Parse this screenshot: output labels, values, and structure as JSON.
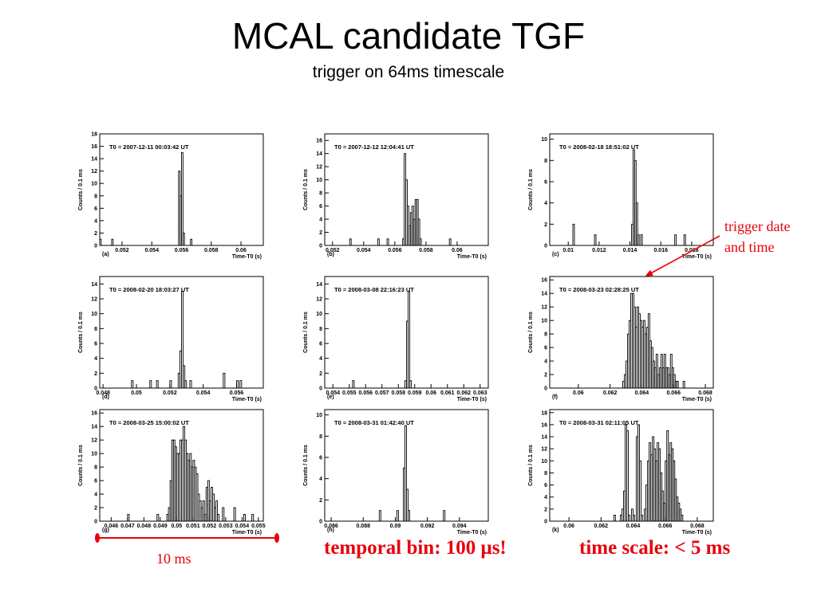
{
  "title": "MCAL candidate TGF",
  "subtitle": "trigger on 64ms timescale",
  "annotations": {
    "trigger_date_line1": "trigger date",
    "trigger_date_line2": "and time",
    "ten_ms": "10 ms",
    "temporal_bin": "temporal bin: 100 μs!",
    "time_scale": "time scale: < 5 ms"
  },
  "colors": {
    "annotation": "#e8000b",
    "histogram": "#000000"
  },
  "chart_data": [
    {
      "type": "bar",
      "panel": "(a)",
      "label": "T0 = 2007-12-11 00:03:42 UT",
      "xlabel": "Time-T0 (s)",
      "ylabel": "Counts /     0.1 ms",
      "xlim": [
        0.0505,
        0.0615
      ],
      "ylim": [
        0,
        18
      ],
      "xticks": [
        "0.052",
        "0.054",
        "0.056",
        "0.058",
        "0.06"
      ],
      "xtick_values": [
        0.052,
        0.054,
        0.056,
        0.058,
        0.06
      ],
      "yticks": [
        0,
        2,
        4,
        6,
        8,
        10,
        12,
        14,
        16,
        18
      ],
      "bin_width": 0.0001,
      "bins": [
        [
          0.0505,
          1
        ],
        [
          0.0513,
          1
        ],
        [
          0.0558,
          12
        ],
        [
          0.0559,
          8
        ],
        [
          0.056,
          15
        ],
        [
          0.0561,
          2
        ],
        [
          0.0566,
          1
        ]
      ]
    },
    {
      "type": "bar",
      "panel": "(b)",
      "label": "T0 = 2007-12-12 12:04:41 UT",
      "xlabel": "Time-T0 (s)",
      "ylabel": "Counts /     0.1 ms",
      "xlim": [
        0.0515,
        0.062
      ],
      "ylim": [
        0,
        17
      ],
      "xticks": [
        "0.052",
        "0.054",
        "0.056",
        "0.058",
        "0.06"
      ],
      "xtick_values": [
        0.052,
        0.054,
        0.056,
        0.058,
        0.06
      ],
      "yticks": [
        0,
        2,
        4,
        6,
        8,
        10,
        12,
        14,
        16
      ],
      "bin_width": 0.0001,
      "bins": [
        [
          0.0531,
          1
        ],
        [
          0.0549,
          1
        ],
        [
          0.0555,
          1
        ],
        [
          0.0565,
          1
        ],
        [
          0.0566,
          14
        ],
        [
          0.0567,
          10
        ],
        [
          0.0568,
          6
        ],
        [
          0.0569,
          3
        ],
        [
          0.057,
          5
        ],
        [
          0.0571,
          6
        ],
        [
          0.0572,
          4
        ],
        [
          0.0573,
          7
        ],
        [
          0.0574,
          7
        ],
        [
          0.0575,
          4
        ],
        [
          0.0576,
          1
        ],
        [
          0.0595,
          1
        ]
      ]
    },
    {
      "type": "bar",
      "panel": "(c)",
      "label": "T0 = 2008-02-18 18:51:02 UT",
      "xlabel": "Time-T0 (s)",
      "ylabel": "Counts /     0.1 ms",
      "xlim": [
        0.0088,
        0.0194
      ],
      "ylim": [
        0,
        10.5
      ],
      "xticks": [
        "0.01",
        "0.012",
        "0.014",
        "0.016",
        "0.018"
      ],
      "xtick_values": [
        0.01,
        0.012,
        0.014,
        0.016,
        0.018
      ],
      "yticks": [
        0,
        2,
        4,
        6,
        8,
        10
      ],
      "bin_width": 0.0001,
      "bins": [
        [
          0.0103,
          2
        ],
        [
          0.0117,
          1
        ],
        [
          0.0141,
          2
        ],
        [
          0.0142,
          9
        ],
        [
          0.0143,
          8
        ],
        [
          0.0144,
          4
        ],
        [
          0.0145,
          1
        ],
        [
          0.0147,
          1
        ],
        [
          0.0169,
          1
        ],
        [
          0.0175,
          1
        ]
      ]
    },
    {
      "type": "bar",
      "panel": "(d)",
      "label": "T0 = 2008-02-20 18:03:27 UT",
      "xlabel": "Time-T0 (s)",
      "ylabel": "Counts /     0.1 ms",
      "xlim": [
        0.0478,
        0.0576
      ],
      "ylim": [
        0,
        15
      ],
      "xticks": [
        "0.048",
        "0.05",
        "0.052",
        "0.054",
        "0.056"
      ],
      "xtick_values": [
        0.048,
        0.05,
        0.052,
        0.054,
        0.056
      ],
      "yticks": [
        0,
        2,
        4,
        6,
        8,
        10,
        12,
        14
      ],
      "bin_width": 0.0001,
      "bins": [
        [
          0.0497,
          1
        ],
        [
          0.0508,
          1
        ],
        [
          0.0512,
          1
        ],
        [
          0.052,
          1
        ],
        [
          0.0525,
          2
        ],
        [
          0.0526,
          5
        ],
        [
          0.0527,
          13
        ],
        [
          0.0528,
          3
        ],
        [
          0.0529,
          1
        ],
        [
          0.0532,
          1
        ],
        [
          0.0552,
          2
        ],
        [
          0.056,
          1
        ],
        [
          0.0562,
          1
        ]
      ]
    },
    {
      "type": "bar",
      "panel": "(e)",
      "label": "T0 = 2008-03-08 22:16:23 UT",
      "xlabel": "Time-T0 (s)",
      "ylabel": "Counts /     0.1 ms",
      "xlim": [
        0.0535,
        0.0635
      ],
      "ylim": [
        0,
        15
      ],
      "xticks": [
        "0.054",
        "0.055",
        "0.056",
        "0.057",
        "0.058",
        "0.059",
        "0.06",
        "0.061",
        "0.062",
        "0.063"
      ],
      "xtick_values": [
        0.054,
        0.055,
        0.056,
        0.057,
        0.058,
        0.059,
        0.06,
        0.061,
        0.062,
        0.063
      ],
      "yticks": [
        0,
        2,
        4,
        6,
        8,
        10,
        12,
        14
      ],
      "bin_width": 0.0001,
      "bins": [
        [
          0.0552,
          1
        ],
        [
          0.0584,
          1
        ],
        [
          0.0585,
          9
        ],
        [
          0.0586,
          13
        ],
        [
          0.0587,
          1
        ]
      ]
    },
    {
      "type": "bar",
      "panel": "(f)",
      "label": "T0 = 2008-03-23 02:28:25 UT",
      "xlabel": "Time-T0 (s)",
      "ylabel": "Counts /     0.1 ms",
      "xlim": [
        0.0582,
        0.0685
      ],
      "ylim": [
        0,
        16.5
      ],
      "xticks": [
        "0.06",
        "0.062",
        "0.064",
        "0.066",
        "0.068"
      ],
      "xtick_values": [
        0.06,
        0.062,
        0.064,
        0.066,
        0.068
      ],
      "yticks": [
        0,
        2,
        4,
        6,
        8,
        10,
        12,
        14,
        16
      ],
      "bin_width": 0.0001,
      "bins": [
        [
          0.0628,
          1
        ],
        [
          0.0629,
          2
        ],
        [
          0.063,
          4
        ],
        [
          0.0631,
          8
        ],
        [
          0.0632,
          10
        ],
        [
          0.0633,
          14
        ],
        [
          0.0634,
          14
        ],
        [
          0.0635,
          12
        ],
        [
          0.0636,
          9
        ],
        [
          0.0637,
          12
        ],
        [
          0.0638,
          11
        ],
        [
          0.0639,
          10
        ],
        [
          0.064,
          9
        ],
        [
          0.0641,
          10
        ],
        [
          0.0642,
          8
        ],
        [
          0.0643,
          9
        ],
        [
          0.0644,
          11
        ],
        [
          0.0645,
          7
        ],
        [
          0.0646,
          6
        ],
        [
          0.0647,
          4
        ],
        [
          0.0648,
          3
        ],
        [
          0.0649,
          5
        ],
        [
          0.065,
          2
        ],
        [
          0.0651,
          3
        ],
        [
          0.0652,
          5
        ],
        [
          0.0653,
          3
        ],
        [
          0.0654,
          5
        ],
        [
          0.0655,
          3
        ],
        [
          0.0656,
          3
        ],
        [
          0.0657,
          2
        ],
        [
          0.0658,
          5
        ],
        [
          0.0659,
          3
        ],
        [
          0.066,
          2
        ],
        [
          0.0661,
          1
        ],
        [
          0.0662,
          1
        ],
        [
          0.0666,
          1
        ]
      ]
    },
    {
      "type": "bar",
      "panel": "(g)",
      "label": "T0 = 2008-03-25 15:00:02 UT",
      "xlabel": "Time-T0 (s)",
      "ylabel": "Counts /     0.1 ms",
      "xlim": [
        0.0453,
        0.0553
      ],
      "ylim": [
        0,
        16.5
      ],
      "xticks": [
        "0.046",
        "0.047",
        "0.048",
        "0.049",
        "0.05",
        "0.051",
        "0.052",
        "0.053",
        "0.054",
        "0.055"
      ],
      "xtick_values": [
        0.046,
        0.047,
        0.048,
        0.049,
        0.05,
        0.051,
        0.052,
        0.053,
        0.054,
        0.055
      ],
      "yticks": [
        0,
        2,
        4,
        6,
        8,
        10,
        12,
        14,
        16
      ],
      "bin_width": 0.0001,
      "bins": [
        [
          0.047,
          1
        ],
        [
          0.0488,
          1
        ],
        [
          0.0494,
          1
        ],
        [
          0.0495,
          2
        ],
        [
          0.0496,
          6
        ],
        [
          0.0497,
          12
        ],
        [
          0.0498,
          12
        ],
        [
          0.0499,
          11
        ],
        [
          0.05,
          10
        ],
        [
          0.0501,
          10
        ],
        [
          0.0502,
          12
        ],
        [
          0.0503,
          12
        ],
        [
          0.0504,
          14
        ],
        [
          0.0505,
          12
        ],
        [
          0.0506,
          10
        ],
        [
          0.0507,
          9
        ],
        [
          0.0508,
          10
        ],
        [
          0.0509,
          8
        ],
        [
          0.051,
          9
        ],
        [
          0.0511,
          8
        ],
        [
          0.0512,
          7
        ],
        [
          0.0513,
          4
        ],
        [
          0.0514,
          3
        ],
        [
          0.0515,
          2
        ],
        [
          0.0516,
          3
        ],
        [
          0.0517,
          1
        ],
        [
          0.0518,
          5
        ],
        [
          0.0519,
          6
        ],
        [
          0.052,
          3
        ],
        [
          0.0521,
          5
        ],
        [
          0.0522,
          4
        ],
        [
          0.0523,
          2
        ],
        [
          0.0524,
          3
        ],
        [
          0.0525,
          1
        ],
        [
          0.0528,
          2
        ],
        [
          0.0535,
          2
        ],
        [
          0.0541,
          1
        ],
        [
          0.0546,
          1
        ]
      ]
    },
    {
      "type": "bar",
      "panel": "(h)",
      "label": "T0 = 2008-03-31 01:42:40 UT",
      "xlabel": "Time-T0 (s)",
      "ylabel": "Counts /     0.1 ms",
      "xlim": [
        0.0856,
        0.0958
      ],
      "ylim": [
        0,
        10.5
      ],
      "xticks": [
        "0.086",
        "0.088",
        "0.09",
        "0.092",
        "0.094"
      ],
      "xtick_values": [
        0.086,
        0.088,
        0.09,
        0.092,
        0.094
      ],
      "yticks": [
        0,
        2,
        4,
        6,
        8,
        10
      ],
      "bin_width": 0.0001,
      "bins": [
        [
          0.089,
          1
        ],
        [
          0.0901,
          1
        ],
        [
          0.0905,
          5
        ],
        [
          0.0906,
          9
        ],
        [
          0.0907,
          3
        ],
        [
          0.0908,
          1
        ],
        [
          0.093,
          1
        ]
      ]
    },
    {
      "type": "bar",
      "panel": "(k)",
      "label": "T0 = 2008-03-31 02:11:05 UT",
      "xlabel": "Time-T0 (s)",
      "ylabel": "Counts /     0.1 ms",
      "xlim": [
        0.0588,
        0.069
      ],
      "ylim": [
        0,
        18.5
      ],
      "xticks": [
        "0.06",
        "0.062",
        "0.064",
        "0.066",
        "0.068"
      ],
      "xtick_values": [
        0.06,
        0.062,
        0.064,
        0.066,
        0.068
      ],
      "yticks": [
        0,
        2,
        4,
        6,
        8,
        10,
        12,
        14,
        16,
        18
      ],
      "bin_width": 0.0001,
      "bins": [
        [
          0.0628,
          1
        ],
        [
          0.0632,
          1
        ],
        [
          0.0633,
          2
        ],
        [
          0.0634,
          5
        ],
        [
          0.0635,
          16
        ],
        [
          0.0636,
          15
        ],
        [
          0.0637,
          1
        ],
        [
          0.0639,
          2
        ],
        [
          0.064,
          1
        ],
        [
          0.0642,
          14
        ],
        [
          0.0643,
          16
        ],
        [
          0.0644,
          10
        ],
        [
          0.0645,
          1
        ],
        [
          0.0647,
          2
        ],
        [
          0.0648,
          6
        ],
        [
          0.0649,
          10
        ],
        [
          0.065,
          13
        ],
        [
          0.0651,
          11
        ],
        [
          0.0652,
          14
        ],
        [
          0.0653,
          12
        ],
        [
          0.0654,
          10
        ],
        [
          0.0655,
          13
        ],
        [
          0.0656,
          12
        ],
        [
          0.0657,
          8
        ],
        [
          0.0658,
          5
        ],
        [
          0.0659,
          3
        ],
        [
          0.066,
          10
        ],
        [
          0.0661,
          15
        ],
        [
          0.0662,
          11
        ],
        [
          0.0663,
          13
        ],
        [
          0.0664,
          12
        ],
        [
          0.0665,
          10
        ],
        [
          0.0666,
          7
        ],
        [
          0.0667,
          4
        ],
        [
          0.0668,
          3
        ],
        [
          0.0669,
          2
        ],
        [
          0.067,
          1
        ]
      ]
    }
  ]
}
